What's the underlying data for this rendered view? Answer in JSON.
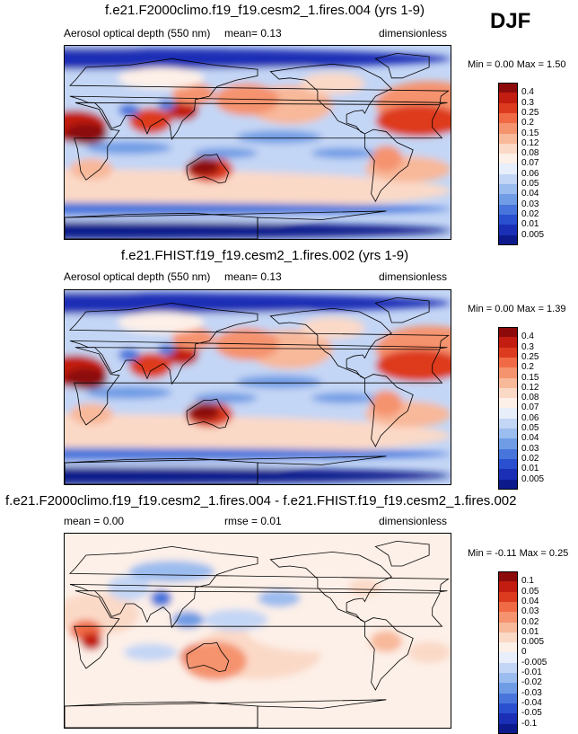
{
  "season": "DJF",
  "panels": [
    {
      "title": "f.e21.F2000climo.f19_f19.cesm2_1.fires.004 (yrs 1-9)",
      "field": "Aerosol optical depth (550 nm)",
      "stat1": "mean=  0.13",
      "stat2": "",
      "units": "dimensionless",
      "minmax": "Min =  0.00 Max =  1.50",
      "colorbar": {
        "labels": [
          "0.4",
          "0.3",
          "0.25",
          "0.2",
          "0.15",
          "0.12",
          "0.08",
          "0.07",
          "0.06",
          "0.05",
          "0.04",
          "0.03",
          "0.02",
          "0.01",
          "0.005"
        ],
        "colors": [
          "#8c0a0a",
          "#c21d10",
          "#dd3b1f",
          "#ef6a45",
          "#f5936e",
          "#f8b89a",
          "#fbd9c7",
          "#fdf0e8",
          "#e8eefa",
          "#c4d6f5",
          "#9bbcee",
          "#6f9ce5",
          "#4775db",
          "#2a4fcf",
          "#1a2fb5",
          "#0d1a8c"
        ],
        "ordering": "descending"
      }
    },
    {
      "title": "f.e21.FHIST.f19_f19.cesm2_1.fires.002 (yrs 1-9)",
      "field": "Aerosol optical depth (550 nm)",
      "stat1": "mean=  0.13",
      "stat2": "",
      "units": "dimensionless",
      "minmax": "Min =  0.00 Max =  1.39",
      "colorbar": {
        "labels": [
          "0.4",
          "0.3",
          "0.25",
          "0.2",
          "0.15",
          "0.12",
          "0.08",
          "0.07",
          "0.06",
          "0.05",
          "0.04",
          "0.03",
          "0.02",
          "0.01",
          "0.005"
        ],
        "colors": [
          "#8c0a0a",
          "#c21d10",
          "#dd3b1f",
          "#ef6a45",
          "#f5936e",
          "#f8b89a",
          "#fbd9c7",
          "#fdf0e8",
          "#e8eefa",
          "#c4d6f5",
          "#9bbcee",
          "#6f9ce5",
          "#4775db",
          "#2a4fcf",
          "#1a2fb5",
          "#0d1a8c"
        ],
        "ordering": "descending"
      }
    },
    {
      "title": "f.e21.F2000climo.f19_f19.cesm2_1.fires.004 - f.e21.FHIST.f19_f19.cesm2_1.fires.002",
      "field": "",
      "stat1": "mean =  0.00",
      "stat2": "rmse =  0.01",
      "units": "dimensionless",
      "minmax": "Min = -0.11 Max =  0.25",
      "colorbar": {
        "labels": [
          "0.1",
          "0.05",
          "0.04",
          "0.03",
          "0.02",
          "0.01",
          "0.005",
          "0",
          "-0.005",
          "-0.01",
          "-0.02",
          "-0.03",
          "-0.04",
          "-0.05",
          "-0.1"
        ],
        "colors": [
          "#8c0a0a",
          "#c21d10",
          "#dd3b1f",
          "#ef6a45",
          "#f5936e",
          "#f8b89a",
          "#fbd9c7",
          "#fdf0e8",
          "#e8eefa",
          "#c4d6f5",
          "#9bbcee",
          "#6f9ce5",
          "#4775db",
          "#2a4fcf",
          "#1a2fb5",
          "#0d1a8c"
        ],
        "ordering": "descending"
      }
    }
  ],
  "chart_data": [
    {
      "type": "heatmap",
      "title": "f.e21.F2000climo.f19_f19.cesm2_1.fires.004 (yrs 1-9)",
      "variable": "Aerosol optical depth (550 nm)",
      "units": "dimensionless",
      "season": "DJF",
      "mean": 0.13,
      "min": 0.0,
      "max": 1.5,
      "contour_levels": [
        0.005,
        0.01,
        0.02,
        0.03,
        0.04,
        0.05,
        0.06,
        0.07,
        0.08,
        0.12,
        0.15,
        0.2,
        0.25,
        0.3,
        0.4
      ]
    },
    {
      "type": "heatmap",
      "title": "f.e21.FHIST.f19_f19.cesm2_1.fires.002 (yrs 1-9)",
      "variable": "Aerosol optical depth (550 nm)",
      "units": "dimensionless",
      "season": "DJF",
      "mean": 0.13,
      "min": 0.0,
      "max": 1.39,
      "contour_levels": [
        0.005,
        0.01,
        0.02,
        0.03,
        0.04,
        0.05,
        0.06,
        0.07,
        0.08,
        0.12,
        0.15,
        0.2,
        0.25,
        0.3,
        0.4
      ]
    },
    {
      "type": "heatmap",
      "title": "f.e21.F2000climo.f19_f19.cesm2_1.fires.004 - f.e21.FHIST.f19_f19.cesm2_1.fires.002",
      "units": "dimensionless",
      "season": "DJF",
      "mean": 0.0,
      "rmse": 0.01,
      "min": -0.11,
      "max": 0.25,
      "contour_levels": [
        -0.1,
        -0.05,
        -0.04,
        -0.03,
        -0.02,
        -0.01,
        -0.005,
        0,
        0.005,
        0.01,
        0.02,
        0.03,
        0.04,
        0.05,
        0.1
      ]
    }
  ]
}
